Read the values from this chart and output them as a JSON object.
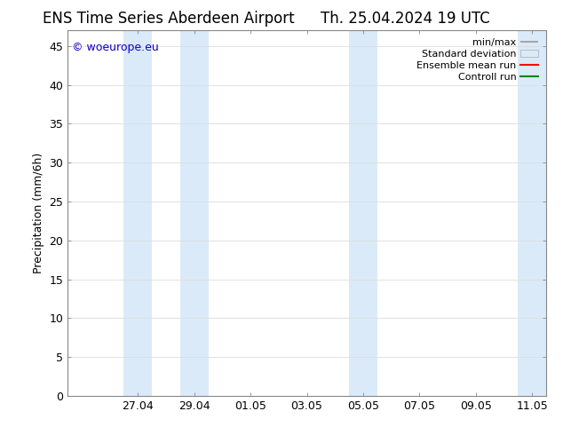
{
  "title_left": "ENS Time Series Aberdeen Airport",
  "title_right": "Th. 25.04.2024 19 UTC",
  "ylabel": "Precipitation (mm/6h)",
  "ylim": [
    0,
    47
  ],
  "yticks": [
    0,
    5,
    10,
    15,
    20,
    25,
    30,
    35,
    40,
    45
  ],
  "xtick_labels": [
    "27.04",
    "29.04",
    "01.05",
    "03.05",
    "05.05",
    "07.05",
    "09.05",
    "11.05"
  ],
  "xtick_positions": [
    2,
    4,
    6,
    8,
    10,
    12,
    14,
    16
  ],
  "watermark": "© woeurope.eu",
  "bg_color": "#ffffff",
  "plot_bg_color": "#ffffff",
  "shaded_bands": [
    [
      1.5,
      2.5
    ],
    [
      3.5,
      4.5
    ],
    [
      9.5,
      10.5
    ],
    [
      15.5,
      16.5
    ]
  ],
  "shade_color": "#daeaf8",
  "legend_items": [
    {
      "label": "min/max",
      "type": "minmax",
      "color": "#aaaaaa"
    },
    {
      "label": "Standard deviation",
      "type": "fill",
      "color": "#ccddee"
    },
    {
      "label": "Ensemble mean run",
      "type": "line",
      "color": "#ff0000"
    },
    {
      "label": "Controll run",
      "type": "line",
      "color": "#008800"
    }
  ],
  "title_fontsize": 12,
  "label_fontsize": 9,
  "tick_fontsize": 9,
  "legend_fontsize": 8,
  "watermark_color": "#1100cc",
  "grid_color": "#dddddd",
  "spine_color": "#888888",
  "xlim": [
    -0.5,
    16.5
  ]
}
